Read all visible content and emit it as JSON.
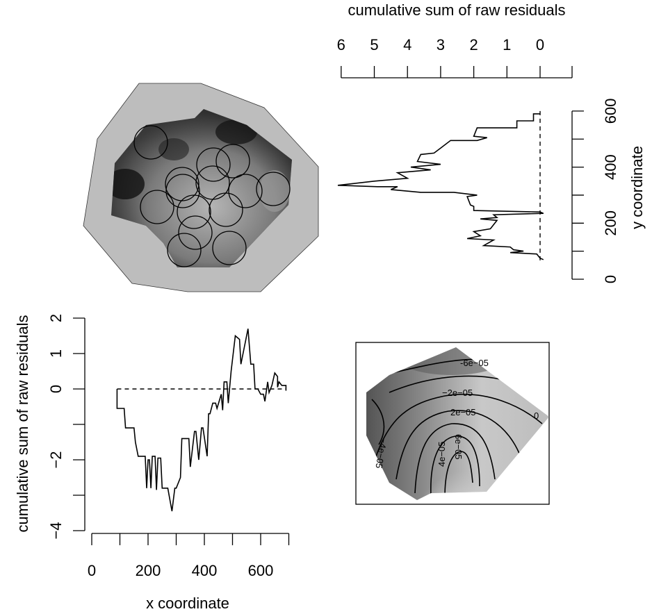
{
  "chart_data": [
    {
      "type": "image",
      "panel": "top-left",
      "description_note": "",
      "circles_count": 14,
      "fill_colors": {
        "border_region": "#bdbdbd",
        "dark": "#1a1a1a",
        "light": "#bfbfbf"
      }
    },
    {
      "type": "line",
      "panel": "top-right",
      "orientation": "vertical",
      "xlabel": "cumulative sum of raw residuals",
      "ylabel": "y coordinate",
      "x_ticks": [
        "6",
        "5",
        "4",
        "3",
        "2",
        "1",
        "0"
      ],
      "y_ticks": [
        "0",
        "200",
        "400",
        "600"
      ],
      "xlim": [
        7,
        0
      ],
      "ylim": [
        0,
        600
      ],
      "series": [
        {
          "points": [
            [
              0,
              590
            ],
            [
              0.2,
              590
            ],
            [
              0.2,
              565
            ],
            [
              0.7,
              565
            ],
            [
              0.7,
              540
            ],
            [
              1.9,
              540
            ],
            [
              2.0,
              510
            ],
            [
              1.6,
              505
            ],
            [
              1.9,
              495
            ],
            [
              2.7,
              495
            ],
            [
              3.2,
              450
            ],
            [
              3.6,
              445
            ],
            [
              3.7,
              420
            ],
            [
              3.0,
              410
            ],
            [
              3.9,
              400
            ],
            [
              3.3,
              390
            ],
            [
              4.3,
              380
            ],
            [
              4.0,
              360
            ],
            [
              5.0,
              350
            ],
            [
              6.1,
              335
            ],
            [
              4.9,
              330
            ],
            [
              4.3,
              330
            ],
            [
              4.5,
              320
            ],
            [
              3.6,
              310
            ],
            [
              2.6,
              310
            ],
            [
              1.9,
              300
            ],
            [
              2.2,
              295
            ],
            [
              2.1,
              265
            ],
            [
              2.0,
              260
            ],
            [
              2.0,
              245
            ],
            [
              0.0,
              240
            ],
            [
              -0.1,
              235
            ],
            [
              1.4,
              230
            ],
            [
              1.3,
              220
            ],
            [
              1.8,
              215
            ],
            [
              1.3,
              210
            ],
            [
              1.5,
              180
            ],
            [
              2.0,
              170
            ],
            [
              1.8,
              155
            ],
            [
              2.2,
              145
            ],
            [
              1.4,
              140
            ],
            [
              1.7,
              120
            ],
            [
              0.9,
              115
            ],
            [
              0.8,
              105
            ],
            [
              0.5,
              100
            ],
            [
              0.9,
              95
            ],
            [
              0.1,
              90
            ],
            [
              0.0,
              75
            ],
            [
              -0.1,
              70
            ]
          ]
        }
      ],
      "reference_line": {
        "x": 0,
        "style": "dashed"
      }
    },
    {
      "type": "line",
      "panel": "bottom-left",
      "xlabel": "x coordinate",
      "ylabel": "cumulative sum of raw residuals",
      "x_ticks": [
        "0",
        "200",
        "400",
        "600"
      ],
      "y_ticks": [
        "2",
        "1",
        "0",
        "",
        "−2",
        "",
        "−4"
      ],
      "xlim": [
        0,
        700
      ],
      "ylim": [
        -4,
        2
      ],
      "series": [
        {
          "points": [
            [
              90,
              0
            ],
            [
              90,
              -0.55
            ],
            [
              115,
              -0.55
            ],
            [
              120,
              -1.1
            ],
            [
              150,
              -1.1
            ],
            [
              155,
              -1.5
            ],
            [
              165,
              -1.9
            ],
            [
              190,
              -1.9
            ],
            [
              195,
              -2.8
            ],
            [
              200,
              -2.0
            ],
            [
              205,
              -2.0
            ],
            [
              210,
              -2.8
            ],
            [
              215,
              -1.9
            ],
            [
              225,
              -1.9
            ],
            [
              230,
              -2.85
            ],
            [
              235,
              -1.95
            ],
            [
              245,
              -1.95
            ],
            [
              250,
              -2.8
            ],
            [
              270,
              -2.8
            ],
            [
              285,
              -3.45
            ],
            [
              295,
              -2.8
            ],
            [
              300,
              -2.8
            ],
            [
              315,
              -2.5
            ],
            [
              320,
              -1.4
            ],
            [
              345,
              -1.4
            ],
            [
              350,
              -2.2
            ],
            [
              365,
              -1.2
            ],
            [
              370,
              -1.2
            ],
            [
              380,
              -2.0
            ],
            [
              390,
              -1.1
            ],
            [
              395,
              -1.1
            ],
            [
              410,
              -1.9
            ],
            [
              415,
              -0.7
            ],
            [
              420,
              -0.7
            ],
            [
              430,
              -0.4
            ],
            [
              440,
              -0.4
            ],
            [
              445,
              -0.55
            ],
            [
              460,
              -0.15
            ],
            [
              465,
              -0.6
            ],
            [
              470,
              0.2
            ],
            [
              480,
              0.2
            ],
            [
              485,
              -0.4
            ],
            [
              495,
              0.5
            ],
            [
              510,
              1.5
            ],
            [
              525,
              1.4
            ],
            [
              530,
              0.7
            ],
            [
              555,
              1.7
            ],
            [
              565,
              0.7
            ],
            [
              575,
              0.7
            ],
            [
              580,
              0.0
            ],
            [
              590,
              0.0
            ],
            [
              600,
              -0.15
            ],
            [
              610,
              -0.15
            ],
            [
              615,
              -0.35
            ],
            [
              625,
              0.2
            ],
            [
              630,
              -0.1
            ],
            [
              640,
              0.1
            ],
            [
              650,
              0.45
            ],
            [
              660,
              0.35
            ],
            [
              660,
              0.05
            ],
            [
              665,
              0.2
            ],
            [
              675,
              0.1
            ],
            [
              690,
              0.1
            ],
            [
              690,
              -0.05
            ]
          ]
        }
      ],
      "reference_line": {
        "y": 0,
        "style": "dashed"
      }
    },
    {
      "type": "contour",
      "panel": "bottom-right",
      "contour_labels": [
        "-6e−05",
        "−2e−05",
        "2e−05",
        "0",
        "−4e−05",
        "4e−05",
        "6e−05"
      ]
    }
  ]
}
